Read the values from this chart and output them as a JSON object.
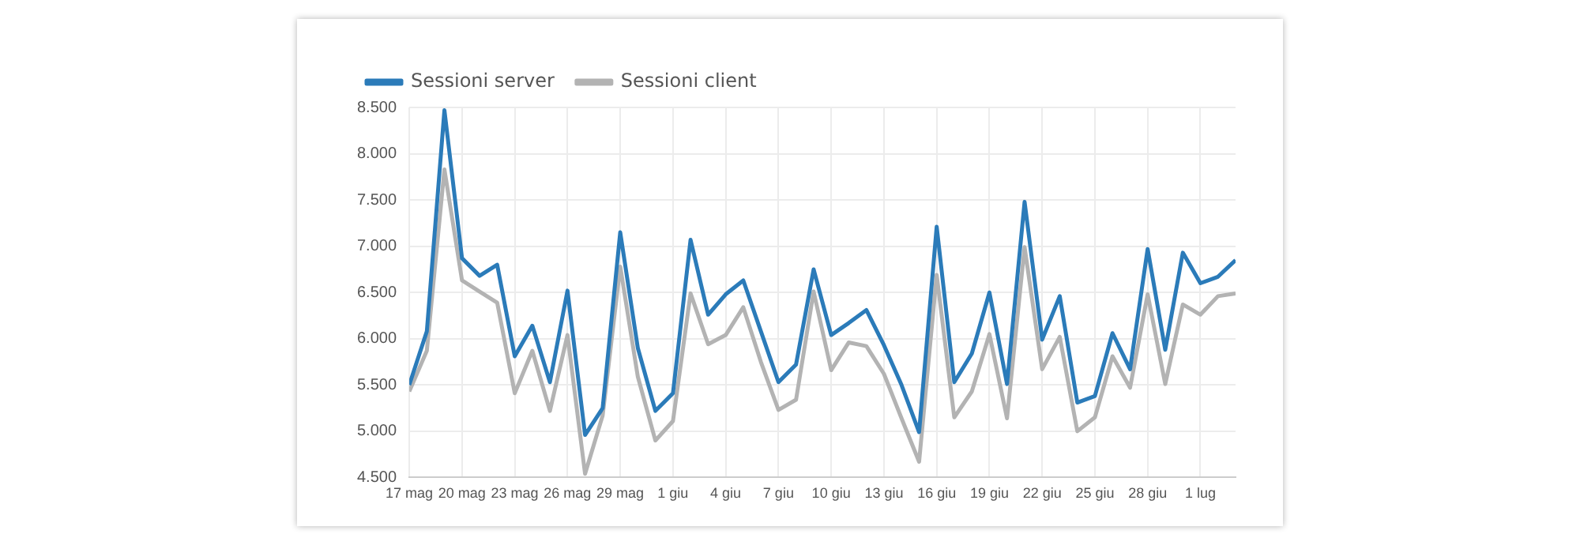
{
  "chart_data": {
    "type": "line",
    "x": [
      "--05-17",
      "--05-18",
      "--05-19",
      "--05-20",
      "--05-21",
      "--05-22",
      "--05-23",
      "--05-24",
      "--05-25",
      "--05-26",
      "--05-27",
      "--05-28",
      "--05-29",
      "--05-30",
      "--05-31",
      "--06-01",
      "--06-02",
      "--06-03",
      "--06-04",
      "--06-05",
      "--06-06",
      "--06-07",
      "--06-08",
      "--06-09",
      "--06-10",
      "--06-11",
      "--06-12",
      "--06-13",
      "--06-14",
      "--06-15",
      "--06-16",
      "--06-17",
      "--06-18",
      "--06-19",
      "--06-20",
      "--06-21",
      "--06-22",
      "--06-23",
      "--06-24",
      "--06-25",
      "--06-26",
      "--06-27",
      "--06-28",
      "--06-29",
      "--06-30",
      "--07-01",
      "--07-02",
      "--07-03"
    ],
    "series": [
      {
        "name": "Sessioni server",
        "color": "#2b7bb9",
        "values": [
          5500,
          6080,
          8470,
          6870,
          6680,
          6800,
          5810,
          6140,
          5530,
          6520,
          4960,
          5250,
          7150,
          5900,
          5220,
          5410,
          7070,
          6260,
          6480,
          6630,
          6080,
          5530,
          5720,
          6750,
          6040,
          6170,
          6310,
          5930,
          5500,
          4990,
          7210,
          5530,
          5840,
          6500,
          5510,
          7480,
          5990,
          6460,
          5310,
          5380,
          6060,
          5670,
          6970,
          5880,
          6930,
          6600,
          6670,
          6850
        ]
      },
      {
        "name": "Sessioni client",
        "color": "#b3b3b3",
        "values": [
          5430,
          5870,
          7830,
          6630,
          6510,
          6390,
          5410,
          5870,
          5220,
          6040,
          4540,
          5170,
          6780,
          5590,
          4900,
          5110,
          6490,
          5940,
          6040,
          6340,
          5750,
          5230,
          5340,
          6510,
          5660,
          5960,
          5920,
          5620,
          5140,
          4670,
          6690,
          5150,
          5430,
          6050,
          5140,
          6990,
          5670,
          6020,
          5000,
          5150,
          5810,
          5470,
          6480,
          5510,
          6370,
          6260,
          6460,
          6490
        ]
      }
    ],
    "xlim": [
      "--05-17",
      "--07-03"
    ],
    "xticks": [
      {
        "value": "--05-17",
        "label": "17 mag"
      },
      {
        "value": "--05-20",
        "label": "20 mag"
      },
      {
        "value": "--05-23",
        "label": "23 mag"
      },
      {
        "value": "--05-26",
        "label": "26 mag"
      },
      {
        "value": "--05-29",
        "label": "29 mag"
      },
      {
        "value": "--06-01",
        "label": "1 giu"
      },
      {
        "value": "--06-04",
        "label": "4 giu"
      },
      {
        "value": "--06-07",
        "label": "7 giu"
      },
      {
        "value": "--06-10",
        "label": "10 giu"
      },
      {
        "value": "--06-13",
        "label": "13 giu"
      },
      {
        "value": "--06-16",
        "label": "16 giu"
      },
      {
        "value": "--06-19",
        "label": "19 giu"
      },
      {
        "value": "--06-22",
        "label": "22 giu"
      },
      {
        "value": "--06-25",
        "label": "25 giu"
      },
      {
        "value": "--06-28",
        "label": "28 giu"
      },
      {
        "value": "--07-01",
        "label": "1 lug"
      }
    ],
    "ylim": [
      4500,
      8500
    ],
    "yticks": [
      {
        "value": 4500,
        "label": "4.500"
      },
      {
        "value": 5000,
        "label": "5.000"
      },
      {
        "value": 5500,
        "label": "5.500"
      },
      {
        "value": 6000,
        "label": "6.000"
      },
      {
        "value": 6500,
        "label": "6.500"
      },
      {
        "value": 7000,
        "label": "7.000"
      },
      {
        "value": 7500,
        "label": "7.500"
      },
      {
        "value": 8000,
        "label": "8.000"
      },
      {
        "value": 8500,
        "label": "8.500"
      }
    ],
    "grid": true,
    "legend": "top left",
    "marker": "none",
    "line_style": "solid"
  }
}
